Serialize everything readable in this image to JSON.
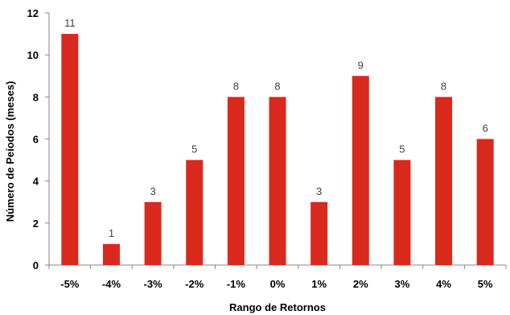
{
  "chart_data": {
    "type": "bar",
    "categories": [
      "-5%",
      "-4%",
      "-3%",
      "-2%",
      "-1%",
      "0%",
      "1%",
      "2%",
      "3%",
      "4%",
      "5%"
    ],
    "values": [
      11,
      1,
      3,
      5,
      8,
      8,
      3,
      9,
      5,
      8,
      6
    ],
    "xlabel": "Rango de Retornos",
    "ylabel": "Número de Peíodos (meses)",
    "ylim": [
      0,
      12
    ],
    "yticks": [
      0,
      2,
      4,
      6,
      8,
      10,
      12
    ],
    "bar_color": "#d9291c",
    "grid": false,
    "data_labels": true
  }
}
